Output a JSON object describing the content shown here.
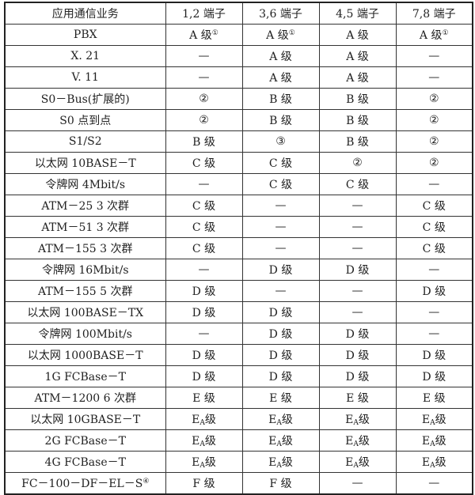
{
  "table": {
    "headers": [
      "应用通信业务",
      "1,2 端子",
      "3,6 端子",
      "4,5 端子",
      "7,8 端子"
    ],
    "rows": [
      [
        {
          "text": "PBX"
        },
        {
          "text": "A 级",
          "sup": "①"
        },
        {
          "text": "A 级",
          "sup": "①"
        },
        {
          "text": "A 级"
        },
        {
          "text": "A 级",
          "sup": "①"
        }
      ],
      [
        {
          "text": "X. 21"
        },
        {
          "text": "—"
        },
        {
          "text": "A 级"
        },
        {
          "text": "A 级"
        },
        {
          "text": "—"
        }
      ],
      [
        {
          "text": "V. 11"
        },
        {
          "text": "—"
        },
        {
          "text": "A 级"
        },
        {
          "text": "A 级"
        },
        {
          "text": "—"
        }
      ],
      [
        {
          "text": "S0－Bus(扩展的)"
        },
        {
          "text": "②"
        },
        {
          "text": "B 级"
        },
        {
          "text": "B 级"
        },
        {
          "text": "②"
        }
      ],
      [
        {
          "text": "S0 点到点"
        },
        {
          "text": "②"
        },
        {
          "text": "B 级"
        },
        {
          "text": "B 级"
        },
        {
          "text": "②"
        }
      ],
      [
        {
          "text": "S1/S2"
        },
        {
          "text": "B 级"
        },
        {
          "text": "③"
        },
        {
          "text": "B 级"
        },
        {
          "text": "②"
        }
      ],
      [
        {
          "text": "以太网 10BASE－T"
        },
        {
          "text": "C 级"
        },
        {
          "text": "C 级"
        },
        {
          "text": "②"
        },
        {
          "text": "②"
        }
      ],
      [
        {
          "text": "令牌网 4Mbit/s"
        },
        {
          "text": "—"
        },
        {
          "text": "C 级"
        },
        {
          "text": "C 级"
        },
        {
          "text": "—"
        }
      ],
      [
        {
          "text": "ATM－25 3 次群"
        },
        {
          "text": "C 级"
        },
        {
          "text": "—"
        },
        {
          "text": "—"
        },
        {
          "text": "C 级"
        }
      ],
      [
        {
          "text": "ATM－51 3 次群"
        },
        {
          "text": "C 级"
        },
        {
          "text": "—"
        },
        {
          "text": "—"
        },
        {
          "text": "C 级"
        }
      ],
      [
        {
          "text": "ATM－155 3 次群"
        },
        {
          "text": "C 级"
        },
        {
          "text": "—"
        },
        {
          "text": "—"
        },
        {
          "text": "C 级"
        }
      ],
      [
        {
          "text": "令牌网 16Mbit/s"
        },
        {
          "text": "—"
        },
        {
          "text": "D 级"
        },
        {
          "text": "D 级"
        },
        {
          "text": "—"
        }
      ],
      [
        {
          "text": "ATM－155 5 次群"
        },
        {
          "text": "D 级"
        },
        {
          "text": "—"
        },
        {
          "text": "—"
        },
        {
          "text": "D 级"
        }
      ],
      [
        {
          "text": "以太网 100BASE－TX"
        },
        {
          "text": "D 级"
        },
        {
          "text": "D 级"
        },
        {
          "text": "—"
        },
        {
          "text": "—"
        }
      ],
      [
        {
          "text": "令牌网 100Mbit/s"
        },
        {
          "text": "—"
        },
        {
          "text": "D 级"
        },
        {
          "text": "D 级"
        },
        {
          "text": "—"
        }
      ],
      [
        {
          "text": "以太网 1000BASE－T"
        },
        {
          "text": "D 级"
        },
        {
          "text": "D 级"
        },
        {
          "text": "D 级"
        },
        {
          "text": "D 级"
        }
      ],
      [
        {
          "text": "1G FCBase－T"
        },
        {
          "text": "D 级"
        },
        {
          "text": "D 级"
        },
        {
          "text": "D 级"
        },
        {
          "text": "D 级"
        }
      ],
      [
        {
          "text": "ATM－1200 6 次群"
        },
        {
          "text": "E 级"
        },
        {
          "text": "E 级"
        },
        {
          "text": "E 级"
        },
        {
          "text": "E 级"
        }
      ],
      [
        {
          "text": "以太网 10GBASE－T"
        },
        {
          "text": "E",
          "sub": "A",
          "suffix": "级"
        },
        {
          "text": "E",
          "sub": "A",
          "suffix": "级"
        },
        {
          "text": "E",
          "sub": "A",
          "suffix": "级"
        },
        {
          "text": "E",
          "sub": "A",
          "suffix": "级"
        }
      ],
      [
        {
          "text": "2G FCBase－T"
        },
        {
          "text": "E",
          "sub": "A",
          "suffix": "级"
        },
        {
          "text": "E",
          "sub": "A",
          "suffix": "级"
        },
        {
          "text": "E",
          "sub": "A",
          "suffix": "级"
        },
        {
          "text": "E",
          "sub": "A",
          "suffix": "级"
        }
      ],
      [
        {
          "text": "4G FCBase－T"
        },
        {
          "text": "E",
          "sub": "A",
          "suffix": "级"
        },
        {
          "text": "E",
          "sub": "A",
          "suffix": "级"
        },
        {
          "text": "E",
          "sub": "A",
          "suffix": "级"
        },
        {
          "text": "E",
          "sub": "A",
          "suffix": "级"
        }
      ],
      [
        {
          "text": "FC－100－DF－EL－S",
          "sup": "④"
        },
        {
          "text": "F 级"
        },
        {
          "text": "F 级"
        },
        {
          "text": "—"
        },
        {
          "text": "—"
        }
      ]
    ]
  }
}
